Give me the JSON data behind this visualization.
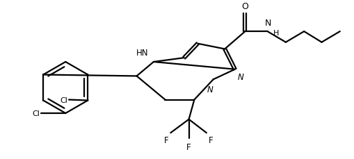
{
  "background_color": "#ffffff",
  "line_color": "#000000",
  "line_width": 1.6,
  "figsize": [
    5.1,
    2.3
  ],
  "dpi": 100,
  "xlim": [
    0,
    5.1
  ],
  "ylim": [
    0,
    2.3
  ]
}
